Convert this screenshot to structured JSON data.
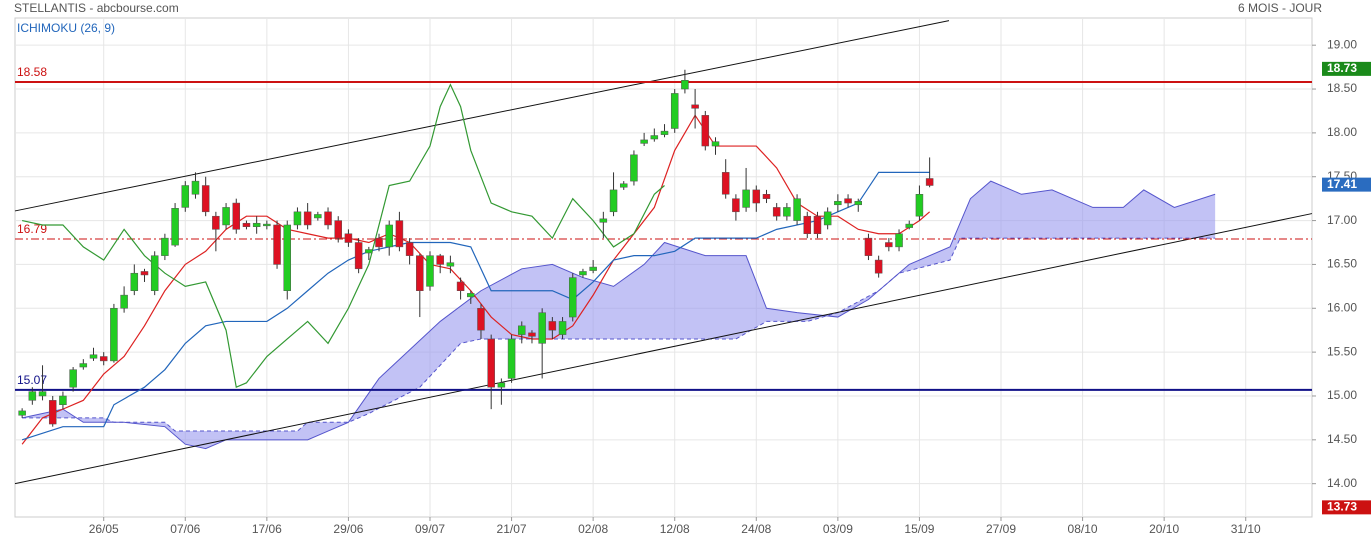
{
  "chart_data": {
    "type": "candlestick",
    "title": "STELLANTIS - abcbourse.com",
    "subtitle": "6 MOIS - JOUR",
    "indicator_label": "ICHIMOKU (26, 9)",
    "xlim": [
      -0.7,
      126.5
    ],
    "ylim": [
      13.62,
      19.31
    ],
    "yticks": [
      {
        "value": 14,
        "label": "14.00"
      },
      {
        "value": 14.5,
        "label": "14.50"
      },
      {
        "value": 15,
        "label": "15.00"
      },
      {
        "value": 15.5,
        "label": "15.50"
      },
      {
        "value": 16,
        "label": "16.00"
      },
      {
        "value": 16.5,
        "label": "16.50"
      },
      {
        "value": 17,
        "label": "17.00"
      },
      {
        "value": 17.5,
        "label": "17.50"
      },
      {
        "value": 18,
        "label": "18.00"
      },
      {
        "value": 18.5,
        "label": "18.50"
      },
      {
        "value": 19,
        "label": "19.00"
      }
    ],
    "xticks": [
      {
        "value": 8,
        "label": "26/05"
      },
      {
        "value": 16,
        "label": "07/06"
      },
      {
        "value": 24,
        "label": "17/06"
      },
      {
        "value": 32,
        "label": "29/06"
      },
      {
        "value": 40,
        "label": "09/07"
      },
      {
        "value": 48,
        "label": "21/07"
      },
      {
        "value": 56,
        "label": "02/08"
      },
      {
        "value": 64,
        "label": "12/08"
      },
      {
        "value": 72,
        "label": "24/08"
      },
      {
        "value": 80,
        "label": "03/09"
      },
      {
        "value": 88,
        "label": "15/09"
      },
      {
        "value": 96,
        "label": "27/09"
      },
      {
        "value": 104,
        "label": "08/10"
      },
      {
        "value": 112,
        "label": "20/10"
      },
      {
        "value": 120,
        "label": "31/10"
      }
    ],
    "grid": true,
    "up_color": "#22cc22",
    "down_color": "#dd1122",
    "x": [
      0,
      1,
      2,
      3,
      4,
      5,
      6,
      7,
      8,
      9,
      10,
      11,
      12,
      13,
      14,
      15,
      16,
      17,
      18,
      19,
      20,
      21,
      22,
      23,
      24,
      25,
      26,
      27,
      28,
      29,
      30,
      31,
      32,
      33,
      34,
      35,
      36,
      37,
      38,
      39,
      40,
      41,
      42,
      43,
      44,
      45,
      46,
      47,
      48,
      49,
      50,
      51,
      52,
      53,
      54,
      55,
      56,
      57,
      58,
      59,
      60,
      61,
      62,
      63,
      64,
      65,
      66,
      67,
      68,
      69,
      70,
      71,
      72,
      73,
      74,
      75,
      76,
      77,
      78,
      79,
      80,
      81,
      82,
      83,
      84,
      85,
      86,
      87,
      88,
      89
    ],
    "open": [
      14.78,
      14.95,
      15.0,
      14.95,
      14.9,
      15.1,
      15.33,
      15.43,
      15.45,
      15.4,
      16.0,
      16.2,
      16.42,
      16.2,
      16.6,
      16.72,
      17.15,
      17.3,
      17.4,
      17.05,
      16.95,
      17.2,
      16.97,
      16.93,
      16.94,
      16.95,
      16.2,
      16.95,
      17.1,
      17.03,
      17.1,
      17.0,
      16.85,
      16.75,
      16.63,
      16.8,
      16.7,
      17.0,
      16.75,
      16.6,
      16.25,
      16.6,
      16.48,
      16.3,
      16.13,
      16.0,
      15.65,
      15.1,
      15.2,
      15.7,
      15.72,
      15.6,
      15.85,
      15.7,
      15.9,
      16.38,
      16.43,
      16.98,
      17.1,
      17.38,
      17.45,
      17.88,
      17.93,
      17.98,
      18.05,
      18.5,
      18.32,
      18.2,
      17.85,
      17.55,
      17.25,
      17.15,
      17.35,
      17.3,
      17.15,
      17.05,
      17.0,
      17.05,
      17.05,
      16.95,
      17.18,
      17.25,
      17.18,
      16.8,
      16.55,
      16.75,
      16.7,
      16.92,
      17.05,
      17.48
    ],
    "high": [
      14.86,
      15.1,
      15.35,
      15.0,
      15.05,
      15.33,
      15.42,
      15.55,
      15.5,
      16.05,
      16.25,
      16.5,
      16.45,
      16.65,
      16.85,
      17.2,
      17.45,
      17.55,
      17.5,
      17.1,
      17.2,
      17.25,
      17.0,
      17.05,
      17.0,
      17.0,
      17.0,
      17.15,
      17.2,
      17.1,
      17.15,
      17.05,
      16.9,
      16.8,
      16.7,
      16.85,
      17.0,
      17.1,
      16.8,
      16.62,
      16.65,
      16.62,
      16.6,
      16.35,
      16.2,
      16.05,
      15.7,
      15.2,
      15.7,
      15.85,
      15.75,
      16.0,
      15.9,
      15.9,
      16.4,
      16.45,
      16.55,
      17.1,
      17.55,
      17.45,
      17.8,
      18.0,
      18.05,
      18.1,
      18.5,
      18.72,
      18.5,
      18.25,
      17.95,
      17.7,
      17.3,
      17.6,
      17.4,
      17.35,
      17.2,
      17.2,
      17.3,
      17.1,
      17.1,
      17.15,
      17.3,
      17.3,
      17.25,
      16.85,
      16.6,
      16.8,
      16.9,
      17.0,
      17.4,
      17.72
    ],
    "low": [
      14.75,
      14.9,
      14.95,
      14.65,
      14.85,
      15.05,
      15.3,
      15.4,
      15.35,
      15.38,
      15.95,
      16.15,
      16.3,
      16.15,
      16.55,
      16.7,
      17.1,
      17.25,
      17.05,
      16.65,
      16.9,
      16.85,
      16.9,
      16.85,
      16.9,
      16.45,
      16.1,
      16.9,
      16.9,
      17.0,
      16.9,
      16.75,
      16.7,
      16.4,
      16.55,
      16.65,
      16.6,
      16.65,
      16.5,
      15.9,
      16.2,
      16.4,
      16.4,
      16.1,
      16.05,
      15.65,
      14.85,
      14.9,
      15.15,
      15.6,
      15.6,
      15.2,
      15.65,
      15.65,
      15.85,
      16.35,
      16.4,
      16.8,
      17.05,
      17.35,
      17.4,
      17.85,
      17.9,
      17.95,
      18.0,
      18.45,
      18.05,
      17.8,
      17.75,
      17.25,
      17.0,
      17.1,
      17.1,
      17.2,
      17.0,
      17.0,
      16.95,
      16.8,
      16.8,
      16.9,
      17.1,
      17.15,
      17.1,
      16.55,
      16.35,
      16.65,
      16.65,
      16.9,
      17.0,
      17.38
    ],
    "close": [
      14.83,
      15.05,
      15.05,
      14.68,
      15.0,
      15.3,
      15.37,
      15.47,
      15.4,
      16.0,
      16.15,
      16.4,
      16.38,
      16.6,
      16.8,
      17.14,
      17.4,
      17.45,
      17.1,
      16.9,
      17.15,
      16.9,
      16.93,
      16.97,
      16.96,
      16.5,
      16.95,
      17.1,
      16.95,
      17.07,
      16.95,
      16.8,
      16.75,
      16.45,
      16.67,
      16.7,
      16.95,
      16.7,
      16.6,
      16.2,
      16.6,
      16.5,
      16.52,
      16.2,
      16.17,
      15.75,
      15.1,
      15.15,
      15.65,
      15.8,
      15.68,
      15.95,
      15.75,
      15.85,
      16.35,
      16.42,
      16.47,
      17.02,
      17.35,
      17.42,
      17.75,
      17.92,
      17.97,
      18.02,
      18.45,
      18.6,
      18.28,
      17.85,
      17.9,
      17.3,
      17.1,
      17.35,
      17.2,
      17.25,
      17.05,
      17.15,
      17.25,
      16.85,
      16.85,
      17.1,
      17.22,
      17.2,
      17.22,
      16.6,
      16.4,
      16.7,
      16.85,
      16.96,
      17.3,
      17.4
    ],
    "lines": [
      {
        "color": "#dd2222",
        "x": [
          0,
          2,
          4,
          6,
          8,
          10,
          12,
          14,
          16,
          18,
          20,
          22,
          24,
          26,
          28,
          30,
          32,
          34,
          36,
          38,
          40,
          42,
          44,
          46,
          48,
          50,
          52,
          54,
          56,
          58,
          60,
          62,
          64,
          66,
          68,
          70,
          72,
          74,
          76,
          78,
          80,
          82,
          84,
          86,
          88,
          89
        ],
        "values": [
          14.45,
          14.75,
          14.85,
          14.95,
          15.25,
          15.45,
          15.8,
          16.2,
          16.5,
          16.65,
          16.9,
          17.05,
          17.05,
          16.9,
          16.85,
          16.8,
          16.8,
          16.75,
          16.85,
          16.75,
          16.5,
          16.45,
          16.2,
          15.9,
          15.7,
          15.65,
          15.65,
          15.8,
          16.15,
          16.55,
          16.85,
          17.15,
          17.8,
          18.2,
          17.85,
          17.85,
          17.85,
          17.6,
          17.2,
          17.05,
          17.05,
          16.9,
          16.85,
          16.85,
          17.0,
          17.1
        ]
      },
      {
        "color": "#2266bb",
        "x": [
          0,
          4,
          8,
          9,
          12,
          14,
          16,
          18,
          20,
          24,
          26,
          28,
          30,
          32,
          34,
          36,
          38,
          42,
          44,
          46,
          52,
          54,
          56,
          58,
          60,
          62,
          64,
          66,
          72,
          74,
          78,
          80,
          82,
          84,
          86,
          89
        ],
        "values": [
          14.5,
          14.65,
          14.65,
          14.9,
          15.1,
          15.3,
          15.6,
          15.8,
          15.85,
          15.85,
          16.0,
          16.2,
          16.4,
          16.55,
          16.65,
          16.7,
          16.75,
          16.75,
          16.7,
          16.2,
          16.2,
          16.1,
          16.3,
          16.55,
          16.6,
          16.6,
          16.65,
          16.8,
          16.8,
          16.9,
          17.0,
          17.1,
          17.2,
          17.55,
          17.55,
          17.55
        ]
      },
      {
        "color": "#339933",
        "x": [
          0,
          2,
          4,
          6,
          8,
          10,
          12,
          14,
          16,
          18,
          20,
          21,
          22,
          24,
          26,
          28,
          30,
          32,
          34,
          36,
          38,
          40,
          41,
          42,
          43,
          44,
          46,
          48,
          50,
          52,
          54,
          56,
          58,
          60,
          62,
          63
        ],
        "values": [
          17.0,
          16.95,
          16.95,
          16.7,
          16.55,
          16.9,
          16.6,
          16.4,
          16.25,
          16.3,
          15.75,
          15.1,
          15.15,
          15.45,
          15.65,
          15.85,
          15.6,
          16.0,
          16.5,
          17.4,
          17.45,
          17.85,
          18.3,
          18.55,
          18.3,
          17.8,
          17.2,
          17.1,
          17.05,
          16.8,
          17.25,
          17.0,
          16.7,
          16.85,
          17.3,
          17.4
        ]
      }
    ],
    "cloud": {
      "color": "#9999ee",
      "span_a_x": [
        0,
        4,
        6,
        10,
        14,
        16,
        18,
        20,
        24,
        28,
        30,
        32,
        35,
        41,
        45,
        49,
        52,
        55,
        58,
        61,
        63,
        67,
        71,
        73,
        76,
        80,
        83,
        87,
        91,
        93,
        95,
        98,
        101,
        105,
        108,
        110,
        113,
        117
      ],
      "span_a": [
        14.75,
        14.85,
        14.7,
        14.7,
        14.65,
        14.45,
        14.4,
        14.5,
        14.5,
        14.5,
        14.6,
        14.7,
        15.2,
        15.85,
        16.2,
        16.45,
        16.5,
        16.35,
        16.25,
        16.5,
        16.75,
        16.6,
        16.6,
        16.0,
        15.95,
        15.9,
        16.1,
        16.5,
        16.7,
        17.25,
        17.45,
        17.3,
        17.35,
        17.15,
        17.15,
        17.35,
        17.15,
        17.3
      ],
      "span_b_x": [
        0,
        8,
        9,
        14,
        15,
        27,
        28,
        32,
        34,
        39,
        43,
        45,
        70,
        73,
        77,
        80,
        84,
        86,
        91,
        92,
        117
      ],
      "span_b": [
        14.75,
        14.75,
        14.7,
        14.7,
        14.6,
        14.6,
        14.7,
        14.7,
        14.8,
        15.1,
        15.6,
        15.65,
        15.65,
        15.85,
        15.85,
        15.95,
        16.2,
        16.4,
        16.55,
        16.8,
        16.8
      ]
    },
    "trendlines": [
      {
        "x": [
          -0.7,
          90.9
        ],
        "values": [
          17.11,
          19.28
        ]
      },
      {
        "x": [
          -0.7,
          126.5
        ],
        "values": [
          14.0,
          17.08
        ]
      }
    ],
    "hlines": [
      {
        "value": 18.58,
        "color": "#cc1111",
        "style": "solid"
      },
      {
        "value": 16.79,
        "color": "#cc1111",
        "style": "dashdot"
      },
      {
        "value": 15.07,
        "color": "#111188",
        "style": "solid"
      }
    ],
    "badges": [
      {
        "value": 18.73,
        "color": "#1a8a1a"
      },
      {
        "value": 17.41,
        "color": "#2a6cc0"
      },
      {
        "value": 13.73,
        "color": "#cc1111"
      }
    ]
  }
}
